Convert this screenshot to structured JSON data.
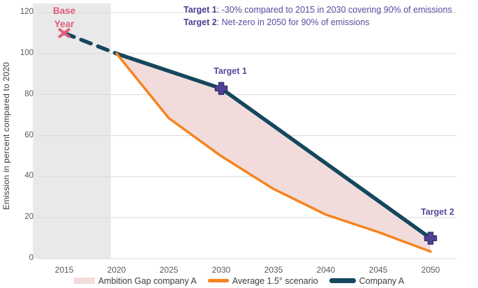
{
  "figure": {
    "base_year_label": "Base Year",
    "annotations": [
      {
        "bold": "Target 1",
        "text": ": -30% compared to 2015 in 2030 covering 90% of emissions"
      },
      {
        "bold": "Target 2",
        "text": ": Net-zero in 2050 for 90% of emissions"
      }
    ],
    "target1_label": "Target 1",
    "target2_label": "Target 2"
  },
  "chart_data": {
    "type": "line",
    "title": "",
    "xlabel": "",
    "ylabel": "Emission in percent compared to 2020",
    "ylim": [
      0,
      120
    ],
    "xlim": [
      2012.5,
      2052.5
    ],
    "y_ticks": [
      0,
      20,
      40,
      60,
      80,
      100,
      120
    ],
    "x_ticks": [
      2015,
      2020,
      2025,
      2030,
      2035,
      2040,
      2045,
      2050
    ],
    "grid": "horizontal",
    "base_year_region": {
      "x_start": 2012.0,
      "x_end": 2019.45,
      "color": "#e9e9e9"
    },
    "series": [
      {
        "name": "Company A (historic)",
        "style": "dashed",
        "color": "#15475d",
        "width": 5.5,
        "points": [
          [
            2015,
            110
          ],
          [
            2020,
            100
          ]
        ]
      },
      {
        "name": "Company A",
        "style": "solid",
        "color": "#15475d",
        "width": 5.5,
        "points": [
          [
            2020,
            100
          ],
          [
            2030,
            83
          ],
          [
            2050,
            10
          ]
        ]
      },
      {
        "name": "Average 1.5° scenario",
        "style": "solid",
        "color": "#f5841f",
        "width": 3.5,
        "points": [
          [
            2020,
            100
          ],
          [
            2025,
            68.5
          ],
          [
            2030,
            50
          ],
          [
            2035,
            34
          ],
          [
            2040,
            21.5
          ],
          [
            2045,
            13
          ],
          [
            2050,
            3.5
          ]
        ]
      }
    ],
    "area": {
      "name": "Ambition Gap company A",
      "color": "#f2dcdb",
      "between": [
        "Company A",
        "Average 1.5° scenario"
      ]
    },
    "markers": [
      {
        "type": "x",
        "at": [
          2015,
          110
        ],
        "label": "Base Year",
        "color": "#e05c7c"
      },
      {
        "type": "plus",
        "at": [
          2030,
          83
        ],
        "label": "Target 1",
        "color": "#4f4296",
        "outline": "#38306e"
      },
      {
        "type": "plus",
        "at": [
          2050,
          10
        ],
        "label": "Target 2",
        "color": "#4f4296",
        "outline": "#38306e"
      }
    ],
    "legend": [
      {
        "label": "Ambition Gap company A",
        "swatch": "area",
        "color": "#f2dcdb"
      },
      {
        "label": "Average 1.5° scenario",
        "swatch": "line",
        "color": "#f5841f"
      },
      {
        "label": "Company A",
        "swatch": "line",
        "color": "#15475d"
      }
    ],
    "legend_position": "bottom",
    "colors": {
      "grid": "#d9d9d9",
      "tick_text": "#595959",
      "axis_title_text": "#3d3d3d"
    }
  }
}
